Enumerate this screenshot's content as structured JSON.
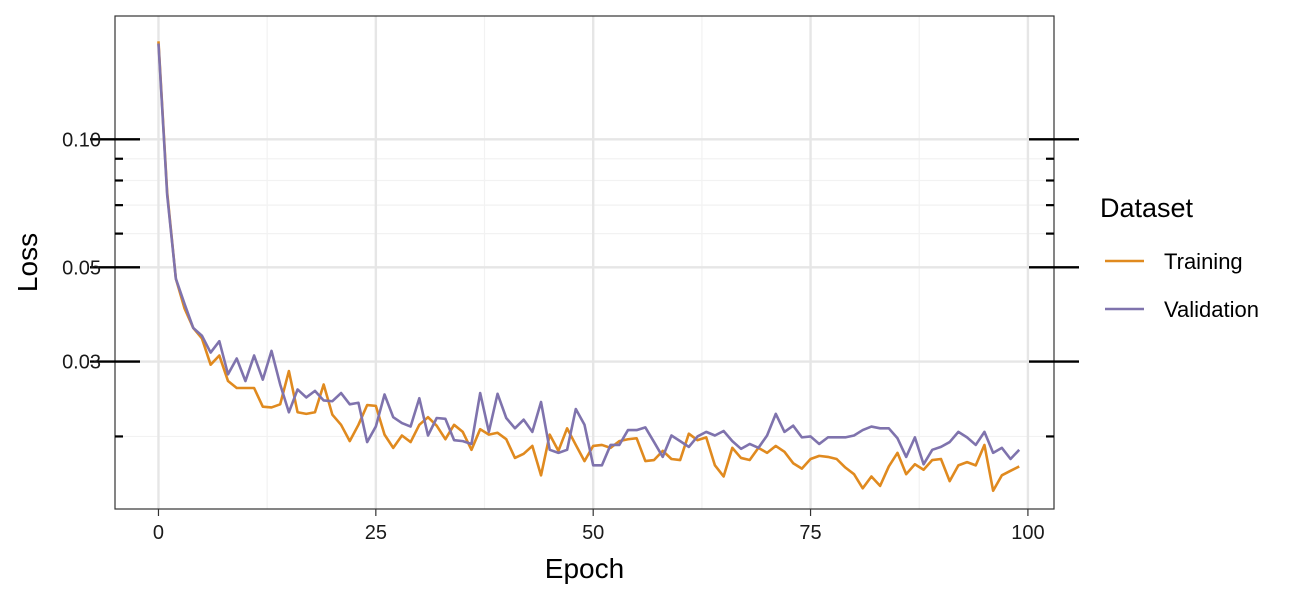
{
  "chart_data": {
    "type": "line",
    "xlabel": "Epoch",
    "ylabel": "Loss",
    "xlim": [
      -5,
      103
    ],
    "ylim": [
      0.0135,
      0.195
    ],
    "y_scale": "log",
    "x_ticks": [
      0,
      25,
      50,
      75,
      100
    ],
    "x_tick_labels": [
      "0",
      "25",
      "50",
      "75",
      "100"
    ],
    "y_ticks": [
      0.03,
      0.05,
      0.1
    ],
    "y_tick_labels": [
      "0.03",
      "0.05",
      "0.10"
    ],
    "y_minor_ticks": [
      0.02,
      0.06,
      0.07,
      0.08,
      0.09
    ],
    "grid": true,
    "legend": {
      "title": "Dataset",
      "position": "right"
    },
    "series": [
      {
        "name": "Training",
        "color": "#e08a1f",
        "x": [
          0,
          1,
          2,
          3,
          4,
          5,
          6,
          7,
          8,
          9,
          10,
          11,
          12,
          13,
          14,
          15,
          16,
          17,
          18,
          19,
          20,
          21,
          22,
          23,
          24,
          25,
          26,
          27,
          28,
          29,
          30,
          31,
          32,
          33,
          34,
          35,
          36,
          37,
          38,
          39,
          40,
          41,
          42,
          43,
          44,
          45,
          46,
          47,
          48,
          49,
          50,
          51,
          52,
          53,
          54,
          55,
          56,
          57,
          58,
          59,
          60,
          61,
          62,
          63,
          64,
          65,
          66,
          67,
          68,
          69,
          70,
          71,
          72,
          73,
          74,
          75,
          76,
          77,
          78,
          79,
          80,
          81,
          82,
          83,
          84,
          85,
          86,
          87,
          88,
          89,
          90,
          91,
          92,
          93,
          94,
          95,
          96,
          97,
          98,
          99
        ],
        "values": [
          0.17,
          0.075,
          0.047,
          0.04,
          0.036,
          0.034,
          0.0295,
          0.031,
          0.027,
          0.026,
          0.026,
          0.026,
          0.0235,
          0.0234,
          0.0238,
          0.0285,
          0.0228,
          0.0226,
          0.0228,
          0.0265,
          0.0225,
          0.0213,
          0.0195,
          0.0213,
          0.0237,
          0.0236,
          0.0202,
          0.0188,
          0.0201,
          0.0194,
          0.0213,
          0.0222,
          0.0212,
          0.0197,
          0.0213,
          0.0205,
          0.0186,
          0.0208,
          0.0202,
          0.0204,
          0.0197,
          0.0178,
          0.0182,
          0.019,
          0.0162,
          0.0202,
          0.0185,
          0.0209,
          0.0191,
          0.0175,
          0.019,
          0.0191,
          0.0188,
          0.0195,
          0.0197,
          0.0198,
          0.0175,
          0.0176,
          0.0185,
          0.0177,
          0.0176,
          0.0203,
          0.0196,
          0.0199,
          0.0171,
          0.0161,
          0.0188,
          0.0178,
          0.0176,
          0.0188,
          0.0183,
          0.019,
          0.0184,
          0.0173,
          0.0168,
          0.0177,
          0.018,
          0.0179,
          0.0177,
          0.0169,
          0.0163,
          0.0151,
          0.0161,
          0.0153,
          0.017,
          0.0183,
          0.0163,
          0.0172,
          0.0167,
          0.0176,
          0.0177,
          0.0157,
          0.0171,
          0.0174,
          0.0171,
          0.0191,
          0.0149,
          0.0162,
          0.0166,
          0.017
        ]
      },
      {
        "name": "Validation",
        "color": "#7f73ad",
        "x": [
          0,
          1,
          2,
          3,
          4,
          5,
          6,
          7,
          8,
          9,
          10,
          11,
          12,
          13,
          14,
          15,
          16,
          17,
          18,
          19,
          20,
          21,
          22,
          23,
          24,
          25,
          26,
          27,
          28,
          29,
          30,
          31,
          32,
          33,
          34,
          35,
          36,
          37,
          38,
          39,
          40,
          41,
          42,
          43,
          44,
          45,
          46,
          47,
          48,
          49,
          50,
          51,
          52,
          53,
          54,
          55,
          56,
          57,
          58,
          59,
          60,
          61,
          62,
          63,
          64,
          65,
          66,
          67,
          68,
          69,
          70,
          71,
          72,
          73,
          74,
          75,
          76,
          77,
          78,
          79,
          80,
          81,
          82,
          83,
          84,
          85,
          86,
          87,
          88,
          89,
          90,
          91,
          92,
          93,
          94,
          95,
          96,
          97,
          98,
          99
        ],
        "values": [
          0.168,
          0.074,
          0.047,
          0.041,
          0.036,
          0.0345,
          0.0315,
          0.0335,
          0.028,
          0.0305,
          0.027,
          0.031,
          0.0272,
          0.0318,
          0.0265,
          0.0228,
          0.0258,
          0.0247,
          0.0256,
          0.0243,
          0.0242,
          0.0253,
          0.0238,
          0.024,
          0.0194,
          0.0211,
          0.0251,
          0.0222,
          0.0215,
          0.0211,
          0.0246,
          0.0201,
          0.0221,
          0.022,
          0.0196,
          0.0195,
          0.0192,
          0.0253,
          0.0205,
          0.0252,
          0.0221,
          0.0209,
          0.0219,
          0.0205,
          0.0241,
          0.0186,
          0.0183,
          0.0186,
          0.0232,
          0.0213,
          0.0171,
          0.0171,
          0.0191,
          0.0191,
          0.0207,
          0.0207,
          0.021,
          0.0194,
          0.0179,
          0.0201,
          0.0195,
          0.0189,
          0.02,
          0.0205,
          0.0201,
          0.0206,
          0.0195,
          0.0187,
          0.0192,
          0.0188,
          0.0201,
          0.0226,
          0.0205,
          0.0212,
          0.0199,
          0.02,
          0.0192,
          0.0199,
          0.0199,
          0.0199,
          0.0201,
          0.0207,
          0.0211,
          0.0209,
          0.0209,
          0.0198,
          0.0179,
          0.0199,
          0.0172,
          0.0186,
          0.0189,
          0.0194,
          0.0205,
          0.0199,
          0.0191,
          0.0205,
          0.0183,
          0.0188,
          0.0177,
          0.0186
        ]
      }
    ]
  }
}
